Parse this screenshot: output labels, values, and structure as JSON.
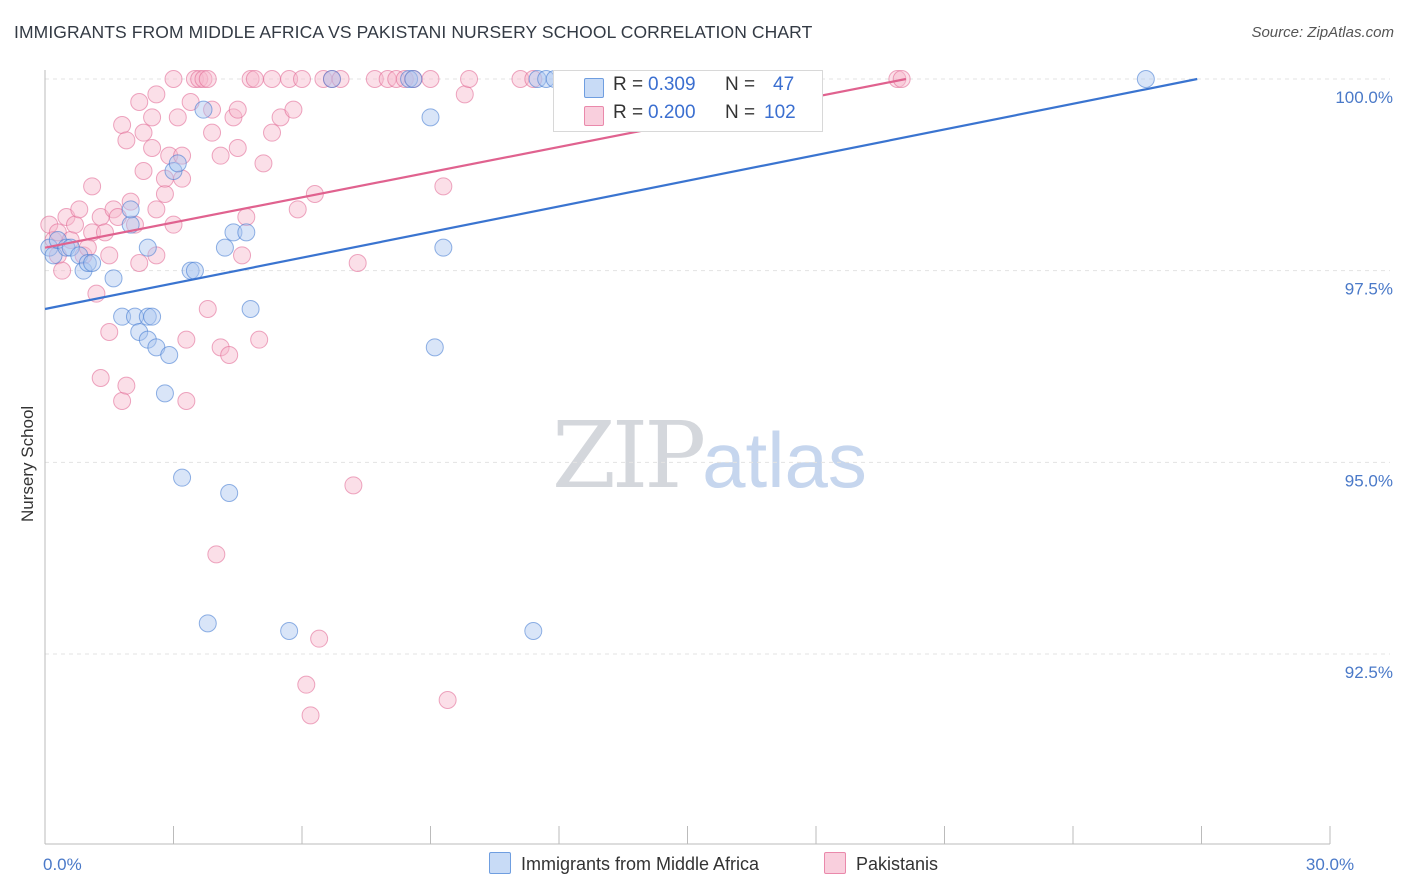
{
  "title": "IMMIGRANTS FROM MIDDLE AFRICA VS PAKISTANI NURSERY SCHOOL CORRELATION CHART",
  "source": "Source: ZipAtlas.com",
  "watermark": {
    "zip": "ZIP",
    "atlas": "atlas"
  },
  "colors": {
    "blue": "#3a74d0",
    "blue_fill": "#aac6f0",
    "pink": "#e0628f",
    "pink_fill": "#f6b9cd",
    "grid": "#e3e3e3",
    "axis_text": "#4a79c8"
  },
  "legend": {
    "rows": [
      {
        "r_label": "R = ",
        "r_value": "0.309",
        "n_label": "N = ",
        "n_value": "47"
      },
      {
        "r_label": "R = ",
        "r_value": "0.200",
        "n_label": "N = ",
        "n_value": "102"
      }
    ]
  },
  "bottom_legend": [
    {
      "label": "Immigrants from Middle Africa"
    },
    {
      "label": "Pakistanis"
    }
  ],
  "chart_data": {
    "type": "scatter",
    "title": "IMMIGRANTS FROM MIDDLE AFRICA VS PAKISTANI NURSERY SCHOOL CORRELATION CHART",
    "xlabel": "",
    "ylabel": "Nursery School",
    "xlim": [
      0,
      30
    ],
    "ylim": [
      90.2,
      100.4
    ],
    "x_ticks": [
      0,
      3,
      6,
      9,
      12,
      15,
      18,
      21,
      24,
      27,
      30
    ],
    "x_tick_labels": [
      {
        "x": 0,
        "label": "0.0%"
      },
      {
        "x": 30,
        "label": "30.0%"
      }
    ],
    "y_ticks": [
      {
        "y": 100.0,
        "label": "100.0%"
      },
      {
        "y": 97.5,
        "label": "97.5%"
      },
      {
        "y": 95.0,
        "label": "95.0%"
      },
      {
        "y": 92.5,
        "label": "92.5%"
      }
    ],
    "series": [
      {
        "name": "Immigrants from Middle Africa",
        "color": "blue",
        "r": 0.309,
        "n": 47,
        "trend": {
          "x0": 0,
          "y0": 97.0,
          "x1": 26.9,
          "y1": 100.0
        },
        "points": [
          [
            0.1,
            97.8
          ],
          [
            0.2,
            97.7
          ],
          [
            0.3,
            97.9
          ],
          [
            0.5,
            97.8
          ],
          [
            0.6,
            97.8
          ],
          [
            0.8,
            97.7
          ],
          [
            0.9,
            97.5
          ],
          [
            1.0,
            97.6
          ],
          [
            1.1,
            97.6
          ],
          [
            1.6,
            97.4
          ],
          [
            1.8,
            96.9
          ],
          [
            2.0,
            98.1
          ],
          [
            2.0,
            98.3
          ],
          [
            2.1,
            96.9
          ],
          [
            2.2,
            96.7
          ],
          [
            2.4,
            96.6
          ],
          [
            2.4,
            96.9
          ],
          [
            2.4,
            97.8
          ],
          [
            2.5,
            96.9
          ],
          [
            2.6,
            96.5
          ],
          [
            2.8,
            95.9
          ],
          [
            2.9,
            96.4
          ],
          [
            3.0,
            98.8
          ],
          [
            3.1,
            98.9
          ],
          [
            3.2,
            94.8
          ],
          [
            3.4,
            97.5
          ],
          [
            3.5,
            97.5
          ],
          [
            3.7,
            99.6
          ],
          [
            3.8,
            92.9
          ],
          [
            4.2,
            97.8
          ],
          [
            4.3,
            94.6
          ],
          [
            4.4,
            98.0
          ],
          [
            4.7,
            98.0
          ],
          [
            4.8,
            97.0
          ],
          [
            5.7,
            92.8
          ],
          [
            6.7,
            100.0
          ],
          [
            8.5,
            100.0
          ],
          [
            8.6,
            100.0
          ],
          [
            9.0,
            99.5
          ],
          [
            9.1,
            96.5
          ],
          [
            9.3,
            97.8
          ],
          [
            11.4,
            92.8
          ],
          [
            11.5,
            100.0
          ],
          [
            11.7,
            100.0
          ],
          [
            11.9,
            100.0
          ],
          [
            12.1,
            100.0
          ],
          [
            25.7,
            100.0
          ]
        ]
      },
      {
        "name": "Pakistanis",
        "color": "pink",
        "r": 0.2,
        "n": 102,
        "trend": {
          "x0": 0,
          "y0": 97.8,
          "x1": 20.1,
          "y1": 100.0
        },
        "points": [
          [
            0.1,
            98.1
          ],
          [
            0.2,
            97.9
          ],
          [
            0.3,
            98.0
          ],
          [
            0.3,
            97.7
          ],
          [
            0.4,
            97.5
          ],
          [
            0.5,
            98.2
          ],
          [
            0.6,
            97.9
          ],
          [
            0.7,
            98.1
          ],
          [
            0.8,
            98.3
          ],
          [
            0.9,
            97.7
          ],
          [
            1.0,
            97.8
          ],
          [
            1.1,
            98.0
          ],
          [
            1.1,
            98.6
          ],
          [
            1.2,
            97.2
          ],
          [
            1.3,
            98.2
          ],
          [
            1.3,
            96.1
          ],
          [
            1.4,
            98.0
          ],
          [
            1.5,
            97.7
          ],
          [
            1.5,
            96.7
          ],
          [
            1.6,
            98.3
          ],
          [
            1.7,
            98.2
          ],
          [
            1.8,
            99.4
          ],
          [
            1.8,
            95.8
          ],
          [
            1.9,
            99.2
          ],
          [
            1.9,
            96.0
          ],
          [
            2.0,
            98.4
          ],
          [
            2.1,
            98.1
          ],
          [
            2.2,
            99.7
          ],
          [
            2.2,
            97.6
          ],
          [
            2.3,
            98.8
          ],
          [
            2.3,
            99.3
          ],
          [
            2.5,
            99.5
          ],
          [
            2.5,
            99.1
          ],
          [
            2.6,
            98.3
          ],
          [
            2.6,
            97.7
          ],
          [
            2.6,
            99.8
          ],
          [
            2.8,
            98.5
          ],
          [
            2.8,
            98.7
          ],
          [
            2.9,
            99.0
          ],
          [
            3.0,
            98.1
          ],
          [
            3.0,
            100.0
          ],
          [
            3.1,
            99.5
          ],
          [
            3.2,
            98.7
          ],
          [
            3.2,
            99.0
          ],
          [
            3.3,
            96.6
          ],
          [
            3.3,
            95.8
          ],
          [
            3.4,
            99.7
          ],
          [
            3.5,
            100.0
          ],
          [
            3.6,
            100.0
          ],
          [
            3.7,
            100.0
          ],
          [
            3.8,
            97.0
          ],
          [
            3.8,
            100.0
          ],
          [
            3.9,
            99.3
          ],
          [
            3.9,
            99.6
          ],
          [
            4.0,
            93.8
          ],
          [
            4.1,
            99.0
          ],
          [
            4.1,
            96.5
          ],
          [
            4.3,
            96.4
          ],
          [
            4.4,
            99.5
          ],
          [
            4.5,
            99.1
          ],
          [
            4.5,
            99.6
          ],
          [
            4.6,
            97.7
          ],
          [
            4.7,
            98.2
          ],
          [
            4.8,
            100.0
          ],
          [
            4.9,
            100.0
          ],
          [
            5.0,
            96.6
          ],
          [
            5.1,
            98.9
          ],
          [
            5.3,
            99.3
          ],
          [
            5.3,
            100.0
          ],
          [
            5.5,
            99.5
          ],
          [
            5.7,
            100.0
          ],
          [
            5.8,
            99.6
          ],
          [
            5.9,
            98.3
          ],
          [
            6.0,
            100.0
          ],
          [
            6.1,
            92.1
          ],
          [
            6.2,
            91.7
          ],
          [
            6.3,
            98.5
          ],
          [
            6.4,
            92.7
          ],
          [
            6.5,
            100.0
          ],
          [
            6.7,
            100.0
          ],
          [
            6.9,
            100.0
          ],
          [
            7.2,
            94.7
          ],
          [
            7.3,
            97.6
          ],
          [
            7.7,
            100.0
          ],
          [
            8.0,
            100.0
          ],
          [
            8.2,
            100.0
          ],
          [
            8.4,
            100.0
          ],
          [
            8.6,
            100.0
          ],
          [
            9.0,
            100.0
          ],
          [
            9.3,
            98.6
          ],
          [
            9.4,
            91.9
          ],
          [
            9.8,
            99.8
          ],
          [
            9.9,
            100.0
          ],
          [
            11.1,
            100.0
          ],
          [
            11.4,
            100.0
          ],
          [
            12.3,
            100.0
          ],
          [
            16.4,
            100.0
          ],
          [
            16.4,
            100.0
          ],
          [
            17.8,
            100.0
          ],
          [
            17.9,
            100.0
          ],
          [
            19.9,
            100.0
          ],
          [
            20.0,
            100.0
          ]
        ]
      }
    ]
  }
}
